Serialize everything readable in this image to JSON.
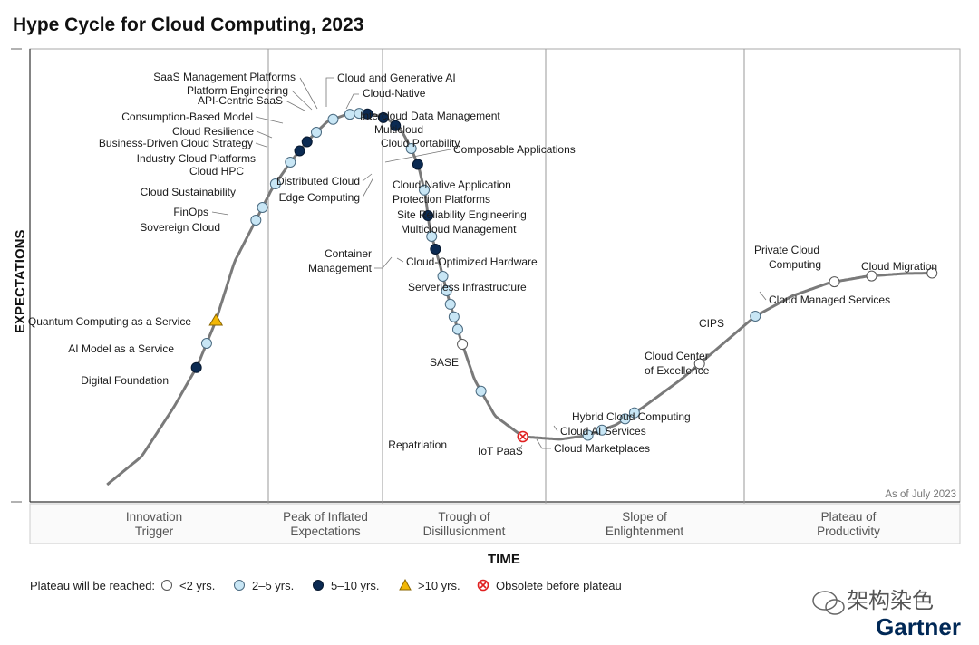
{
  "chart_data": {
    "type": "hype-cycle",
    "title": "Hype Cycle for Cloud Computing, 2023",
    "ylabel": "EXPECTATIONS",
    "xlabel": "TIME",
    "as_of": "As of July 2023",
    "phases": [
      {
        "line1": "Innovation",
        "line2": "Trigger"
      },
      {
        "line1": "Peak of Inflated",
        "line2": "Expectations"
      },
      {
        "line1": "Trough of",
        "line2": "Disillusionment"
      },
      {
        "line1": "Slope of",
        "line2": "Enlightenment"
      },
      {
        "line1": "Plateau of",
        "line2": "Productivity"
      }
    ],
    "legend": {
      "label": "Plateau will be reached:",
      "items": [
        {
          "key": "lt2",
          "text": "<2 yrs."
        },
        {
          "key": "2to5",
          "text": "2–5 yrs."
        },
        {
          "key": "5to10",
          "text": "5–10 yrs."
        },
        {
          "key": "gt10",
          "text": ">10 yrs."
        },
        {
          "key": "obsolete",
          "text": "Obsolete before plateau"
        }
      ]
    },
    "colors": {
      "lt2": "#ffffff",
      "2to5": "#c8e6f5",
      "5to10": "#0b2a52",
      "gt10": "#f2b705",
      "obsolete": "#e02020",
      "curve": "#7a7a7a",
      "grid": "#9a9a9a"
    },
    "points": [
      {
        "name": "Digital Foundation",
        "t": 0.179,
        "cat": "5to10"
      },
      {
        "name": "AI Model as a Service",
        "t": 0.19,
        "cat": "2to5"
      },
      {
        "name": "Quantum Computing as a Service",
        "t": 0.2,
        "cat": "gt10"
      },
      {
        "name": "Sovereign Cloud",
        "t": 0.243,
        "cat": "2to5"
      },
      {
        "name": "FinOps",
        "t": 0.25,
        "cat": "2to5"
      },
      {
        "name": "Cloud Sustainability",
        "t": 0.264,
        "cat": "2to5"
      },
      {
        "name": "Cloud HPC",
        "t": 0.28,
        "cat": "2to5"
      },
      {
        "name": "Industry Cloud Platforms",
        "t": 0.29,
        "cat": "5to10"
      },
      {
        "name": "Business-Driven Cloud Strategy",
        "t": 0.298,
        "cat": "5to10"
      },
      {
        "name": "Cloud Resilience",
        "t": 0.308,
        "cat": "2to5"
      },
      {
        "name": "Consumption-Based Model",
        "t": 0.326,
        "cat": "2to5"
      },
      {
        "name": "API-Centric SaaS",
        "t": 0.344,
        "cat": "2to5"
      },
      {
        "name": "Platform Engineering",
        "t": 0.354,
        "cat": "2to5"
      },
      {
        "name": "SaaS Management Platforms",
        "t": 0.363,
        "cat": "5to10"
      },
      {
        "name": "Cloud and Generative AI",
        "t": 0.38,
        "cat": "5to10"
      },
      {
        "name": "Cloud-Native",
        "t": 0.393,
        "cat": "5to10"
      },
      {
        "name": "Intercloud Data Management",
        "t": 0.41,
        "cat": "2to5"
      },
      {
        "name": "Multicloud",
        "t": 0.417,
        "cat": "5to10"
      },
      {
        "name": "Cloud Portability",
        "t": 0.424,
        "cat": "2to5"
      },
      {
        "name": "Composable Applications",
        "t": 0.428,
        "cat": "5to10"
      },
      {
        "name": "Distributed Cloud",
        "t": 0.432,
        "cat": "2to5"
      },
      {
        "name": "Edge Computing",
        "t": 0.436,
        "cat": "5to10"
      },
      {
        "name": "Cloud-Native Application Protection Platforms",
        "t": 0.444,
        "cat": "2to5"
      },
      {
        "name": "Site Reliability Engineering",
        "t": 0.448,
        "cat": "2to5"
      },
      {
        "name": "Multicloud Management",
        "t": 0.452,
        "cat": "2to5"
      },
      {
        "name": "Container Management",
        "t": 0.456,
        "cat": "2to5"
      },
      {
        "name": "Cloud-Optimized Hardware",
        "t": 0.46,
        "cat": "2to5"
      },
      {
        "name": "Serverless Infrastructure",
        "t": 0.465,
        "cat": "lt2"
      },
      {
        "name": "SASE",
        "t": 0.485,
        "cat": "2to5"
      },
      {
        "name": "Repatriation",
        "t": 0.53,
        "cat": "obsolete"
      },
      {
        "name": "IoT PaaS",
        "t": 0.6,
        "cat": "2to5"
      },
      {
        "name": "Cloud Marketplaces",
        "t": 0.615,
        "cat": "2to5"
      },
      {
        "name": "Cloud AI Services",
        "t": 0.64,
        "cat": "2to5"
      },
      {
        "name": "Hybrid Cloud Computing",
        "t": 0.65,
        "cat": "2to5"
      },
      {
        "name": "Cloud Center of Excellence",
        "t": 0.72,
        "cat": "lt2"
      },
      {
        "name": "CIPS",
        "t": 0.78,
        "cat": "2to5"
      },
      {
        "name": "Private Cloud Computing",
        "t": 0.865,
        "cat": "lt2"
      },
      {
        "name": "Cloud Managed Services",
        "t": 0.905,
        "cat": "lt2"
      },
      {
        "name": "Cloud Migration",
        "t": 0.97,
        "cat": "lt2"
      }
    ]
  },
  "brand": "Gartner",
  "watermark": "架构染色"
}
